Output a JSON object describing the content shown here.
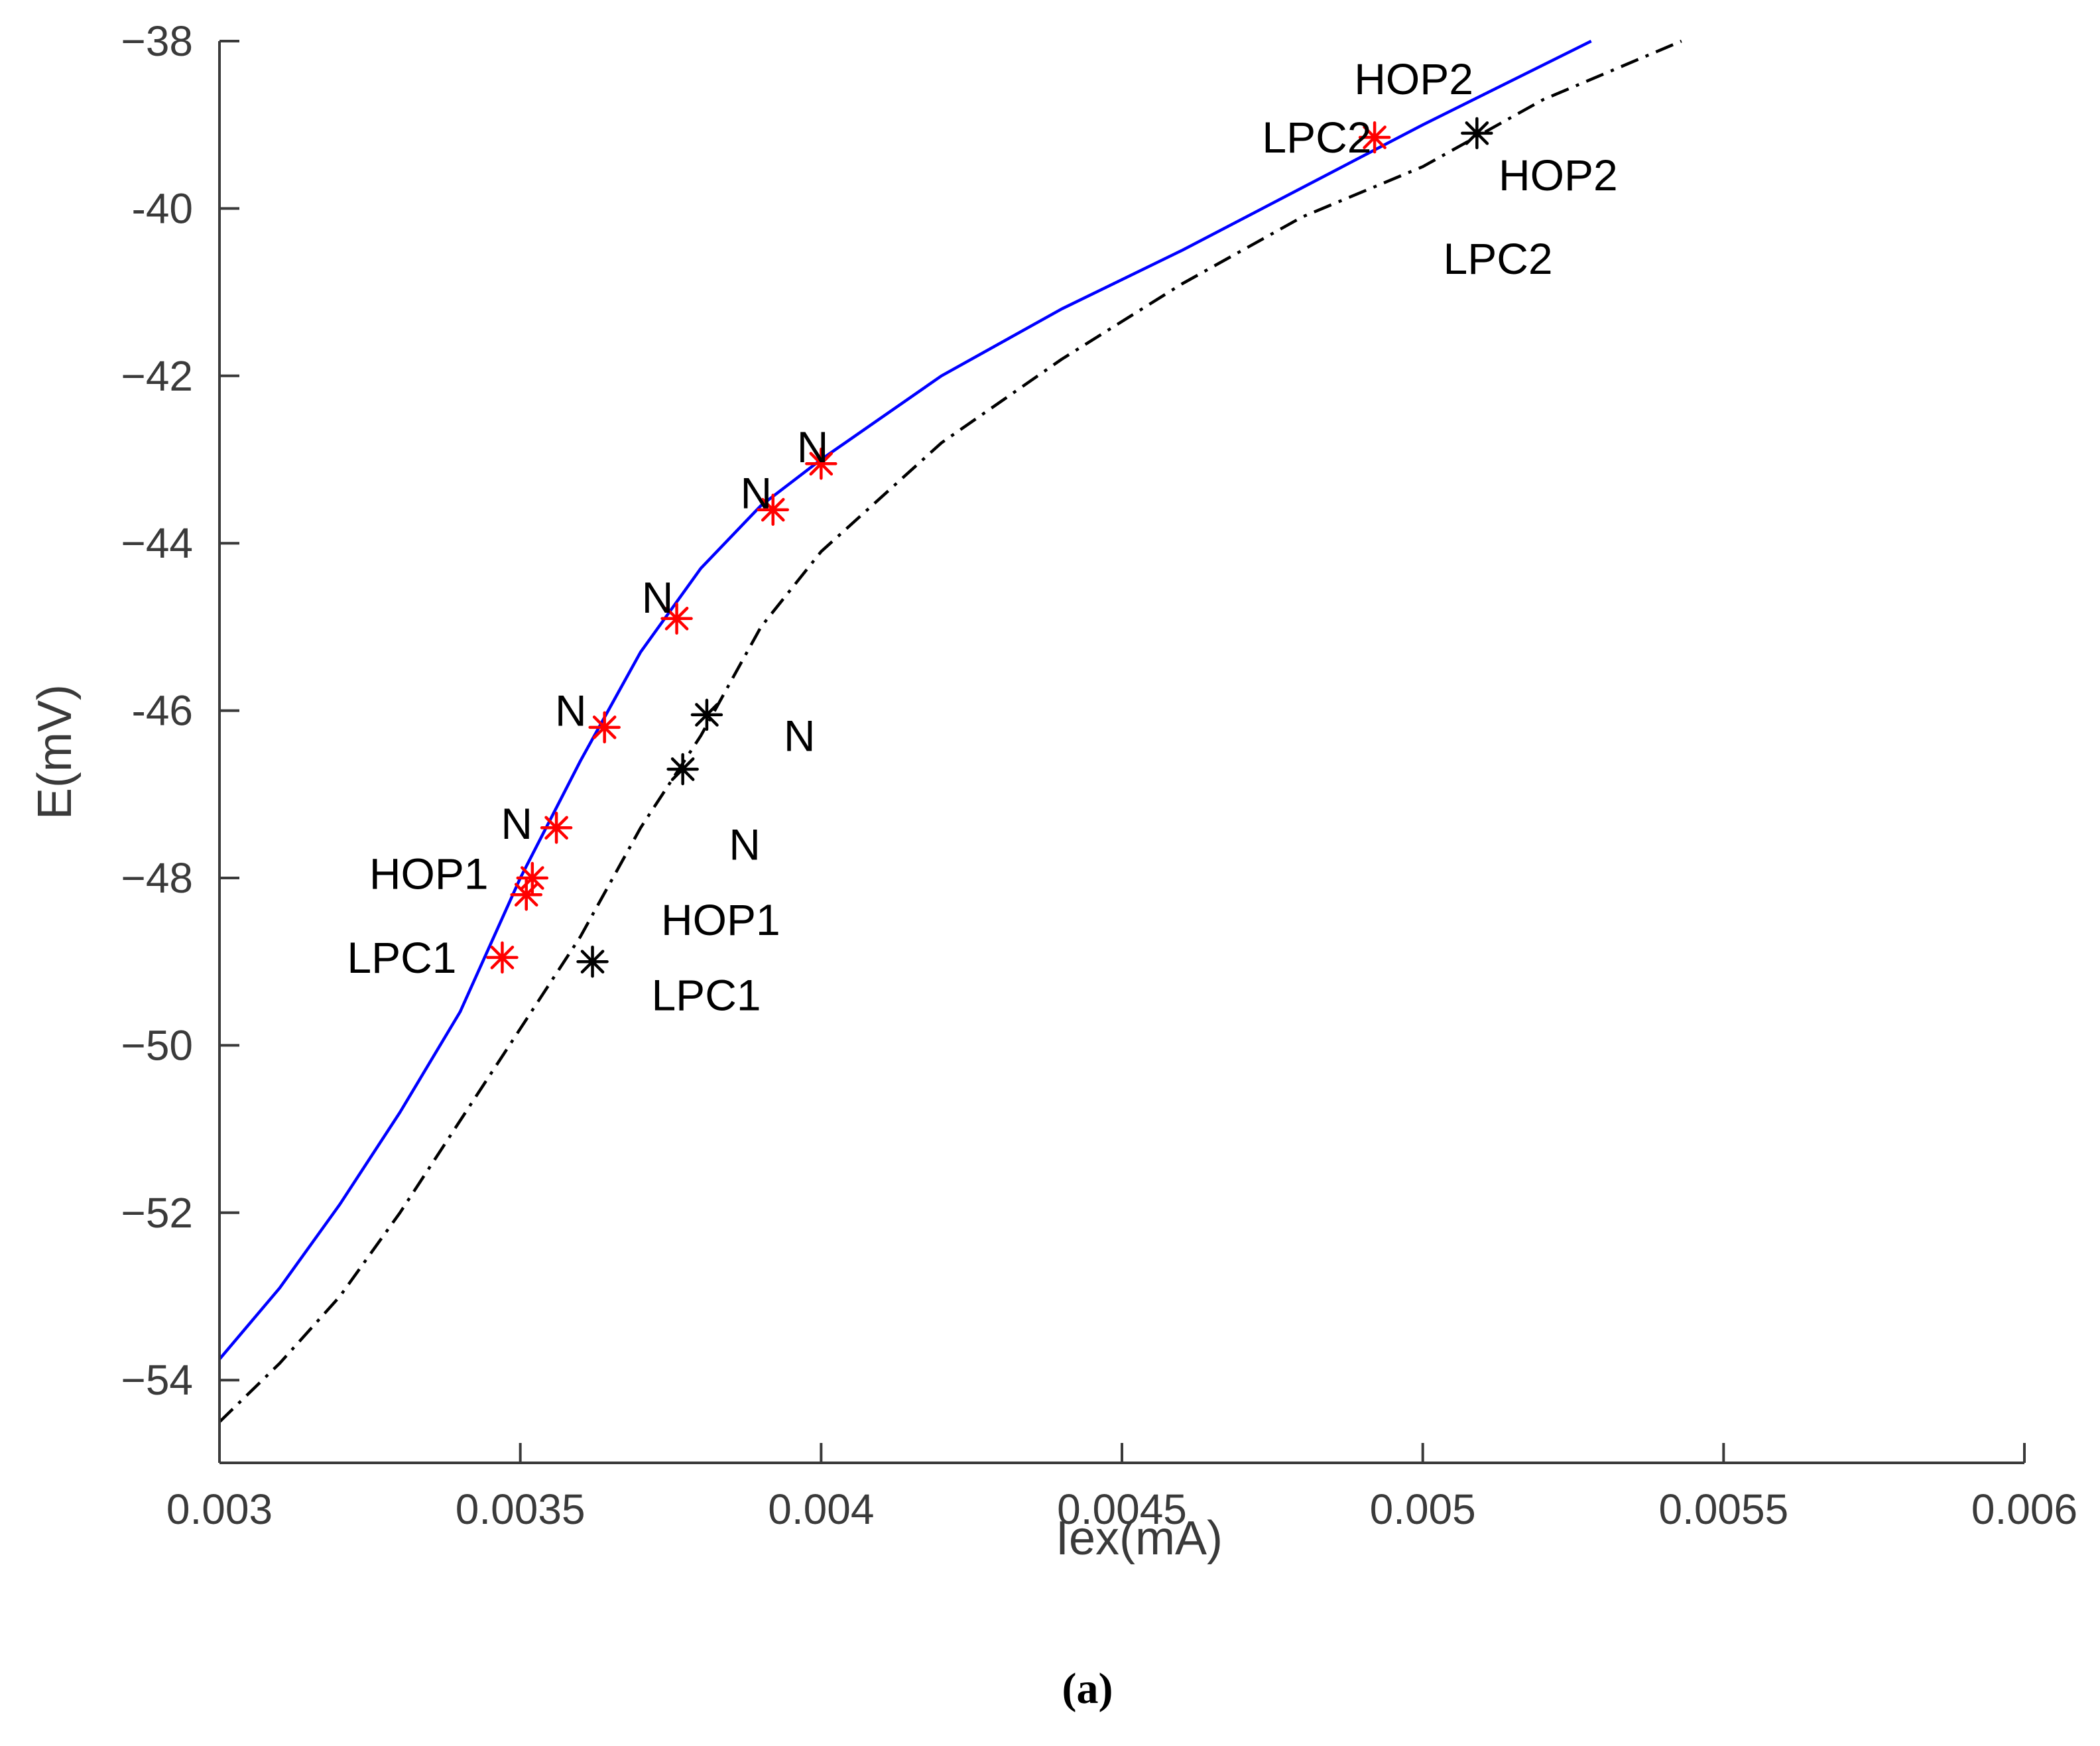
{
  "chart_data": {
    "type": "line",
    "title": "",
    "caption": "(a)",
    "xlabel": "Iex(mA)",
    "ylabel": "E(mV)",
    "xlim": [
      0.003,
      0.006
    ],
    "ylim": [
      -55,
      -38
    ],
    "xticks": [
      0.003,
      0.0035,
      0.004,
      0.0045,
      0.005,
      0.0055,
      0.006
    ],
    "xtick_labels": [
      "0.003",
      "0.0035",
      "0.004",
      "0.0045",
      "0.005",
      "0.0055",
      "0.006"
    ],
    "yticks": [
      -38,
      -40,
      -42,
      -44,
      -46,
      -48,
      -50,
      -52,
      -54
    ],
    "ytick_labels": [
      "−38",
      "-40",
      "−42",
      "−44",
      "-46",
      "−48",
      "−50",
      "−52",
      "−54"
    ],
    "grid": false,
    "series": [
      {
        "name": "solid",
        "color": "#0000ff",
        "style": "solid",
        "x": [
          0.003,
          0.0031,
          0.0032,
          0.0033,
          0.0034,
          0.0035,
          0.0036,
          0.0037,
          0.0038,
          0.0039,
          0.004,
          0.0042,
          0.0044,
          0.0046,
          0.0048,
          0.005,
          0.00528
        ],
        "y": [
          -53.75,
          -52.9,
          -51.9,
          -50.8,
          -49.6,
          -48.0,
          -46.6,
          -45.3,
          -44.3,
          -43.55,
          -43.0,
          -42.0,
          -41.2,
          -40.5,
          -39.75,
          -39.0,
          -38.0
        ]
      },
      {
        "name": "dash-dot",
        "color": "#000000",
        "style": "dashdot",
        "x": [
          0.003,
          0.0031,
          0.0032,
          0.0033,
          0.0034,
          0.0035,
          0.0036,
          0.0037,
          0.0038,
          0.0039,
          0.004,
          0.0042,
          0.0044,
          0.0046,
          0.0048,
          0.005,
          0.0052,
          0.00543
        ],
        "y": [
          -54.5,
          -53.8,
          -53.0,
          -52.0,
          -50.9,
          -49.8,
          -48.7,
          -47.4,
          -46.3,
          -45.0,
          -44.1,
          -42.8,
          -41.8,
          -40.9,
          -40.1,
          -39.5,
          -38.7,
          -38.0
        ]
      }
    ],
    "markers": [
      {
        "series": "solid",
        "color": "#ff0000",
        "x": 0.00347,
        "y": -48.95
      },
      {
        "series": "solid",
        "color": "#ff0000",
        "x": 0.00351,
        "y": -48.2
      },
      {
        "series": "solid",
        "color": "#ff0000",
        "x": 0.00352,
        "y": -48.0
      },
      {
        "series": "solid",
        "color": "#ff0000",
        "x": 0.00356,
        "y": -47.4
      },
      {
        "series": "solid",
        "color": "#ff0000",
        "x": 0.00364,
        "y": -46.2
      },
      {
        "series": "solid",
        "color": "#ff0000",
        "x": 0.00376,
        "y": -44.9
      },
      {
        "series": "solid",
        "color": "#ff0000",
        "x": 0.00392,
        "y": -43.6
      },
      {
        "series": "solid",
        "color": "#ff0000",
        "x": 0.004,
        "y": -43.05
      },
      {
        "series": "solid",
        "color": "#ff0000",
        "x": 0.00492,
        "y": -39.15
      },
      {
        "series": "dash-dot",
        "color": "#000000",
        "x": 0.00362,
        "y": -49.0
      },
      {
        "series": "dash-dot",
        "color": "#000000",
        "x": 0.00377,
        "y": -46.7
      },
      {
        "series": "dash-dot",
        "color": "#000000",
        "x": 0.00381,
        "y": -46.05
      },
      {
        "series": "dash-dot",
        "color": "#000000",
        "x": 0.00509,
        "y": -39.1
      }
    ],
    "annotations": [
      {
        "text": "LPC1",
        "x": 0.003303,
        "y": -48.95
      },
      {
        "text": "HOP1",
        "x": 0.003348,
        "y": -47.95
      },
      {
        "text": "N",
        "x": 0.003494,
        "y": -47.35
      },
      {
        "text": "N",
        "x": 0.003584,
        "y": -46.0
      },
      {
        "text": "N",
        "x": 0.003728,
        "y": -44.65
      },
      {
        "text": "N",
        "x": 0.003892,
        "y": -43.4
      },
      {
        "text": "N",
        "x": 0.003986,
        "y": -42.85
      },
      {
        "text": "LPC2",
        "x": 0.004824,
        "y": -39.15
      },
      {
        "text": "HOP2",
        "x": 0.004985,
        "y": -38.45
      },
      {
        "text": "N",
        "x": 0.003964,
        "y": -46.3
      },
      {
        "text": "N",
        "x": 0.003873,
        "y": -47.6
      },
      {
        "text": "HOP1",
        "x": 0.003833,
        "y": -48.5
      },
      {
        "text": "LPC1",
        "x": 0.003809,
        "y": -49.4
      },
      {
        "text": "HOP2",
        "x": 0.005225,
        "y": -39.6
      },
      {
        "text": "LPC2",
        "x": 0.005125,
        "y": -40.6
      }
    ]
  }
}
